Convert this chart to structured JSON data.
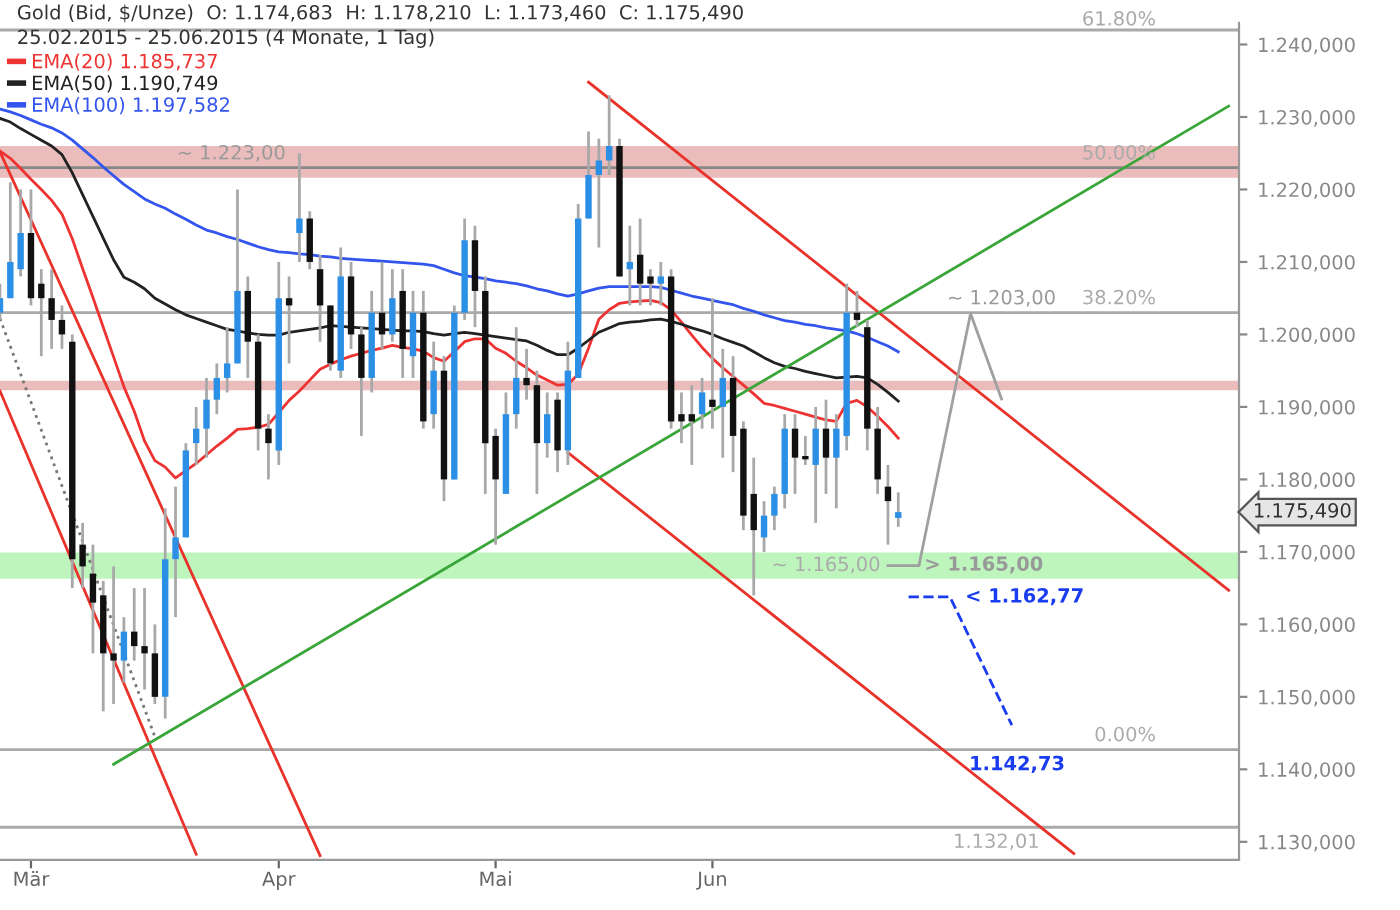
{
  "chart_data": {
    "type": "candlestick",
    "title": "Gold (Bid, $/Unze)  O: 1.174,683  H: 1.178,210  L: 1.173,460  C: 1.175,490",
    "subtitle": "25.02.2015 - 25.06.2015 (4 Monate, 1 Tag)",
    "categories": [
      null,
      null,
      null,
      "Mär",
      null,
      null,
      null,
      null,
      null,
      null,
      null,
      null,
      null,
      null,
      null,
      null,
      null,
      null,
      null,
      null,
      null,
      null,
      null,
      null,
      null,
      null,
      null,
      "Apr",
      null,
      null,
      null,
      null,
      null,
      null,
      null,
      null,
      null,
      null,
      null,
      null,
      null,
      null,
      null,
      null,
      null,
      null,
      null,
      null,
      "Mai",
      null,
      null,
      null,
      null,
      null,
      null,
      null,
      null,
      null,
      null,
      null,
      null,
      null,
      null,
      null,
      null,
      null,
      null,
      null,
      null,
      "Jun",
      null,
      null,
      null,
      null,
      null,
      null,
      null,
      null,
      null,
      null,
      null,
      null,
      null,
      null,
      null,
      null,
      null,
      null,
      null,
      null,
      null,
      null,
      null,
      null,
      null,
      null,
      null,
      null,
      null,
      null,
      null,
      null,
      null,
      null,
      null,
      null,
      null,
      null,
      null,
      null,
      null,
      null,
      null,
      null,
      null,
      null,
      null,
      null,
      null,
      null
    ],
    "ohlc": [
      [
        1203,
        1207,
        1202,
        1205
      ],
      [
        1205,
        1221,
        1205,
        1210
      ],
      [
        1209,
        1220,
        1208,
        1214
      ],
      [
        1214,
        1220,
        1204,
        1205
      ],
      [
        1207,
        1209,
        1197,
        1205
      ],
      [
        1205,
        1209,
        1198,
        1202
      ],
      [
        1202,
        1204,
        1198,
        1200
      ],
      [
        1199,
        1200,
        1165,
        1169
      ],
      [
        1171,
        1174,
        1165,
        1168
      ],
      [
        1167,
        1171,
        1156,
        1163
      ],
      [
        1164,
        1166,
        1148,
        1156
      ],
      [
        1156,
        1168,
        1149,
        1155
      ],
      [
        1155,
        1161,
        1152,
        1159
      ],
      [
        1159,
        1165,
        1155,
        1157
      ],
      [
        1157,
        1165,
        1151,
        1156
      ],
      [
        1156,
        1160,
        1149,
        1150
      ],
      [
        1150,
        1176,
        1147,
        1169
      ],
      [
        1169,
        1179,
        1161,
        1172
      ],
      [
        1172,
        1185,
        1172,
        1184
      ],
      [
        1185,
        1190,
        1182,
        1187
      ],
      [
        1187,
        1194,
        1183,
        1191
      ],
      [
        1191,
        1196,
        1189,
        1194
      ],
      [
        1194,
        1201,
        1192,
        1196
      ],
      [
        1196,
        1220,
        1196,
        1206
      ],
      [
        1206,
        1208,
        1194,
        1199
      ],
      [
        1199,
        1200,
        1184,
        1187
      ],
      [
        1187,
        1189,
        1180,
        1185
      ],
      [
        1184,
        1210,
        1182,
        1205
      ],
      [
        1205,
        1208,
        1196,
        1204
      ],
      [
        1214,
        1225,
        1210,
        1216
      ],
      [
        1216,
        1217,
        1209,
        1210
      ],
      [
        1209,
        1211,
        1199,
        1204
      ],
      [
        1204,
        1204,
        1195,
        1196
      ],
      [
        1195,
        1212,
        1194,
        1208
      ],
      [
        1208,
        1210,
        1198,
        1200
      ],
      [
        1200,
        1201,
        1186,
        1194
      ],
      [
        1194,
        1206,
        1192,
        1203
      ],
      [
        1203,
        1210,
        1198,
        1200
      ],
      [
        1200,
        1209,
        1199,
        1205
      ],
      [
        1206,
        1209,
        1194,
        1198
      ],
      [
        1197,
        1206,
        1194,
        1203
      ],
      [
        1203,
        1206,
        1187,
        1188
      ],
      [
        1189,
        1199,
        1187,
        1195
      ],
      [
        1195,
        1197,
        1177,
        1180
      ],
      [
        1180,
        1204,
        1180,
        1203
      ],
      [
        1203,
        1216,
        1202,
        1213
      ],
      [
        1213,
        1215,
        1201,
        1206
      ],
      [
        1206,
        1208,
        1178,
        1185
      ],
      [
        1186,
        1187,
        1171,
        1180
      ],
      [
        1178,
        1192,
        1178,
        1189
      ],
      [
        1189,
        1201,
        1187,
        1194
      ],
      [
        1194,
        1198,
        1191,
        1193
      ],
      [
        1193,
        1195,
        1178,
        1185
      ],
      [
        1185,
        1192,
        1183,
        1189
      ],
      [
        1191,
        1192,
        1181,
        1184
      ],
      [
        1184,
        1199,
        1182,
        1195
      ],
      [
        1194,
        1218,
        1194,
        1216
      ],
      [
        1216,
        1228,
        1216,
        1222
      ],
      [
        1222,
        1227,
        1212,
        1224
      ],
      [
        1224,
        1233,
        1222,
        1226
      ],
      [
        1226,
        1227,
        1208,
        1208
      ],
      [
        1209,
        1215,
        1204,
        1210
      ],
      [
        1211,
        1216,
        1204,
        1207
      ],
      [
        1208,
        1209,
        1204,
        1207
      ],
      [
        1207,
        1210,
        1204,
        1208
      ],
      [
        1208,
        1209,
        1187,
        1188
      ],
      [
        1189,
        1192,
        1185,
        1188
      ],
      [
        1189,
        1193,
        1182,
        1188
      ],
      [
        1189,
        1194,
        1187,
        1192
      ],
      [
        1191,
        1205,
        1187,
        1190
      ],
      [
        1190,
        1198,
        1183,
        1194
      ],
      [
        1194,
        1197,
        1181,
        1186
      ],
      [
        1187,
        1188,
        1173,
        1175
      ],
      [
        1178,
        1183,
        1164,
        1173
      ],
      [
        1172,
        1177,
        1170,
        1175
      ],
      [
        1175,
        1179,
        1173,
        1178
      ],
      [
        1178,
        1189,
        1176,
        1187
      ],
      [
        1187,
        1189,
        1178,
        1183
      ],
      [
        1183,
        1186,
        1182,
        1183
      ],
      [
        1182,
        1190,
        1174,
        1187
      ],
      [
        1187,
        1191,
        1178,
        1183
      ],
      [
        1183,
        1189,
        1176,
        1187
      ],
      [
        1186,
        1207,
        1184,
        1203
      ],
      [
        1203,
        1206,
        1201,
        1202
      ],
      [
        1201,
        1202,
        1184,
        1187
      ],
      [
        1187,
        1190,
        1178,
        1180
      ],
      [
        1179,
        1182,
        1171,
        1177
      ],
      [
        1174.683,
        1178.21,
        1173.46,
        1175.49
      ],
      null,
      null,
      null,
      null,
      null,
      null,
      null,
      null,
      null,
      null,
      null,
      null,
      null,
      null,
      null,
      null,
      null,
      null,
      null,
      null,
      null,
      null,
      null,
      null,
      null,
      null,
      null,
      null,
      null,
      null,
      null,
      null
    ],
    "colors": [
      "#2b8fe6",
      "#2b8fe6",
      "#2b8fe6",
      "#111111",
      "#111111",
      "#111111",
      "#111111",
      "#111111",
      "#111111",
      "#111111",
      "#111111",
      "#111111",
      "#2b8fe6",
      "#111111",
      "#111111",
      "#111111",
      "#2b8fe6",
      "#2b8fe6",
      "#2b8fe6",
      "#2b8fe6",
      "#2b8fe6",
      "#2b8fe6",
      "#2b8fe6",
      "#2b8fe6",
      "#111111",
      "#111111",
      "#111111",
      "#2b8fe6",
      "#111111",
      "#2b8fe6",
      "#111111",
      "#111111",
      "#111111",
      "#2b8fe6",
      "#111111",
      "#111111",
      "#2b8fe6",
      "#111111",
      "#2b8fe6",
      "#111111",
      "#2b8fe6",
      "#111111",
      "#2b8fe6",
      "#111111",
      "#2b8fe6",
      "#2b8fe6",
      "#111111",
      "#111111",
      "#111111",
      "#2b8fe6",
      "#2b8fe6",
      "#111111",
      "#111111",
      "#2b8fe6",
      "#111111",
      "#2b8fe6",
      "#2b8fe6",
      "#2b8fe6",
      "#2b8fe6",
      "#2b8fe6",
      "#111111",
      "#2b8fe6",
      "#111111",
      "#111111",
      "#2b8fe6",
      "#111111",
      "#111111",
      "#111111",
      "#2b8fe6",
      "#111111",
      "#2b8fe6",
      "#111111",
      "#111111",
      "#111111",
      "#2b8fe6",
      "#2b8fe6",
      "#2b8fe6",
      "#111111",
      "#111111",
      "#2b8fe6",
      "#111111",
      "#2b8fe6",
      "#2b8fe6",
      "#111111",
      "#111111",
      "#111111",
      "#111111",
      "#2b8fe6",
      null,
      null,
      null,
      null,
      null,
      null,
      null,
      null,
      null,
      null,
      null,
      null,
      null,
      null,
      null,
      null,
      null,
      null,
      null,
      null,
      null,
      null,
      null,
      null,
      null,
      null,
      null,
      null,
      null,
      null,
      null,
      null
    ],
    "series": [
      {
        "type": "line",
        "name": "EMA(20) 1.185,737",
        "color": "#ee3333",
        "values": [
          1225.3,
          1224.3,
          1222.9,
          1221.4,
          1220.0,
          1218.5,
          1216.6,
          1213.2,
          1209.1,
          1205.1,
          1201.0,
          1196.9,
          1192.8,
          1189.4,
          1185.3,
          1182.6,
          1181.7,
          1180.2,
          1181.2,
          1182.2,
          1183.4,
          1184.6,
          1185.7,
          1186.9,
          1187.0,
          1187.2,
          1187.6,
          1189.2,
          1190.9,
          1192.2,
          1193.7,
          1195.2,
          1195.9,
          1196.5,
          1197.0,
          1197.4,
          1197.8,
          1198.1,
          1198.5,
          1198.2,
          1198.0,
          1197.7,
          1196.8,
          1196.3,
          1197.6,
          1199.0,
          1199.4,
          1199.4,
          1198.1,
          1197.4,
          1196.3,
          1195.4,
          1194.4,
          1193.7,
          1193.0,
          1193.1,
          1194.5,
          1198.1,
          1202.1,
          1203.4,
          1204.3,
          1204.5,
          1204.6,
          1204.7,
          1204.4,
          1203.4,
          1201.7,
          1199.9,
          1198.2,
          1196.7,
          1195.4,
          1194.2,
          1193.0,
          1191.8,
          1190.5,
          1190.2,
          1189.8,
          1189.4,
          1189.0,
          1188.6,
          1188.2,
          1188.0,
          1190.5,
          1190.9,
          1190.0,
          1188.7,
          1187.3,
          1185.7,
          null,
          null,
          null,
          null,
          null,
          null,
          null,
          null,
          null,
          null,
          null,
          null,
          null,
          null,
          null,
          null,
          null,
          null,
          null,
          null,
          null,
          null,
          null,
          null,
          null,
          null,
          null,
          null,
          null,
          null,
          null,
          null
        ]
      },
      {
        "type": "line",
        "name": "EMA(50) 1.190,749",
        "color": "#222222",
        "values": [
          1229.8,
          1229.3,
          1228.4,
          1227.6,
          1226.8,
          1226.0,
          1224.8,
          1222.3,
          1219.3,
          1216.3,
          1213.3,
          1210.3,
          1207.9,
          1207.2,
          1206.3,
          1205.0,
          1204.2,
          1203.4,
          1202.7,
          1202.2,
          1201.7,
          1201.2,
          1200.7,
          1200.5,
          1200.2,
          1200.0,
          1199.9,
          1199.9,
          1200.3,
          1200.5,
          1200.7,
          1200.9,
          1201.2,
          1201.1,
          1201.0,
          1200.9,
          1200.8,
          1200.7,
          1200.6,
          1200.5,
          1200.5,
          1200.4,
          1200.1,
          1199.9,
          1200.1,
          1200.3,
          1200.1,
          1199.9,
          1199.7,
          1199.5,
          1199.3,
          1199.1,
          1198.5,
          1197.8,
          1197.2,
          1197.2,
          1198.1,
          1199.2,
          1200.3,
          1200.9,
          1201.5,
          1201.7,
          1201.8,
          1202.0,
          1202.1,
          1201.8,
          1201.4,
          1200.9,
          1200.5,
          1200.0,
          1199.4,
          1198.9,
          1198.4,
          1197.6,
          1196.8,
          1196.1,
          1195.6,
          1195.3,
          1194.9,
          1194.6,
          1194.3,
          1194.0,
          1194.1,
          1194.2,
          1194.0,
          1193.1,
          1192.0,
          1190.8,
          null,
          null,
          null,
          null,
          null,
          null,
          null,
          null,
          null,
          null,
          null,
          null,
          null,
          null,
          null,
          null,
          null,
          null,
          null,
          null,
          null,
          null,
          null,
          null,
          null,
          null,
          null,
          null,
          null,
          null,
          null,
          null
        ]
      },
      {
        "type": "line",
        "name": "EMA(100) 1.197,582",
        "color": "#3355ee",
        "values": [
          1231.1,
          1230.7,
          1230.2,
          1229.6,
          1229.0,
          1228.5,
          1227.8,
          1226.8,
          1225.6,
          1224.4,
          1223.1,
          1221.9,
          1220.7,
          1219.7,
          1218.7,
          1218.0,
          1217.4,
          1216.6,
          1215.9,
          1215.1,
          1214.4,
          1214.0,
          1213.5,
          1213.1,
          1212.6,
          1212.1,
          1211.7,
          1211.4,
          1211.3,
          1211.1,
          1211.0,
          1210.8,
          1210.7,
          1210.5,
          1210.4,
          1210.3,
          1210.2,
          1210.1,
          1210.0,
          1209.9,
          1209.8,
          1209.7,
          1209.5,
          1209.0,
          1208.5,
          1208.1,
          1207.9,
          1207.7,
          1207.4,
          1207.2,
          1207.0,
          1206.7,
          1206.3,
          1206.0,
          1205.6,
          1205.3,
          1205.6,
          1206.0,
          1206.4,
          1206.6,
          1206.6,
          1206.6,
          1206.6,
          1206.6,
          1206.5,
          1206.1,
          1205.7,
          1205.3,
          1205.0,
          1204.7,
          1204.4,
          1204.1,
          1203.6,
          1203.2,
          1202.7,
          1202.3,
          1201.9,
          1201.7,
          1201.4,
          1201.2,
          1200.9,
          1200.7,
          1200.5,
          1200.1,
          1199.6,
          1199.0,
          1198.4,
          1197.6,
          null,
          null,
          null,
          null,
          null,
          null,
          null,
          null,
          null,
          null,
          null,
          null,
          null,
          null,
          null,
          null,
          null,
          null,
          null,
          null,
          null,
          null,
          null,
          null,
          null,
          null,
          null,
          null,
          null,
          null,
          null,
          null
        ]
      },
      {
        "type": "line",
        "color": "#e8322a",
        "values": [
          1225.2,
          null,
          null,
          null,
          null,
          null,
          null,
          null,
          null,
          null,
          null,
          null,
          null,
          null,
          null,
          null,
          null,
          null,
          null,
          null,
          null,
          null,
          null,
          null,
          null,
          null,
          null,
          null,
          null,
          null,
          null,
          1128.1,
          null,
          null,
          null,
          null,
          null,
          null,
          null,
          null,
          null,
          null,
          null,
          null,
          null,
          null,
          null,
          null,
          null,
          null,
          null,
          null,
          null,
          null,
          null,
          null,
          null,
          null,
          null,
          null,
          null,
          null,
          null,
          null,
          null,
          null,
          null,
          null,
          null,
          null,
          null,
          null,
          null,
          null,
          null,
          null,
          null,
          null,
          null,
          null,
          null,
          null,
          null,
          null,
          null,
          null,
          null,
          null,
          null,
          null,
          null,
          null,
          null,
          null,
          null,
          null,
          null,
          null,
          null,
          null,
          null,
          null,
          null,
          null,
          null,
          null,
          null,
          null,
          null,
          null,
          null,
          null,
          null,
          null,
          null,
          null,
          null,
          null,
          null,
          null
        ]
      },
      {
        "type": "line",
        "color": "#e8322a",
        "values": [
          1192.2,
          null,
          null,
          null,
          null,
          null,
          null,
          null,
          null,
          null,
          null,
          null,
          null,
          null,
          null,
          null,
          null,
          null,
          null,
          1128.3,
          null,
          null,
          null,
          null,
          null,
          null,
          null,
          null,
          null,
          null,
          null,
          null,
          null,
          null,
          null,
          null,
          null,
          null,
          null,
          null,
          null,
          null,
          null,
          null,
          null,
          null,
          null,
          null,
          null,
          null,
          null,
          null,
          null,
          null,
          null,
          null,
          null,
          null,
          null,
          null,
          null,
          null,
          null,
          null,
          null,
          null,
          null,
          null,
          null,
          null,
          null,
          null,
          null,
          null,
          null,
          null,
          null,
          null,
          null,
          null,
          null,
          null,
          null,
          null,
          null,
          null,
          null,
          null,
          null,
          null,
          null,
          null,
          null,
          null,
          null,
          null,
          null,
          null,
          null,
          null,
          null,
          null,
          null,
          null,
          null,
          null,
          null,
          null,
          null,
          null,
          null,
          null,
          null,
          null,
          null,
          null,
          null,
          null,
          null,
          null
        ]
      },
      {
        "type": "line",
        "color": "#e8322a",
        "values": [
          null,
          null,
          null,
          null,
          null,
          null,
          null,
          null,
          null,
          null,
          null,
          null,
          null,
          null,
          null,
          null,
          null,
          null,
          null,
          null,
          null,
          null,
          null,
          null,
          null,
          null,
          null,
          null,
          null,
          null,
          null,
          null,
          null,
          null,
          null,
          null,
          null,
          null,
          null,
          null,
          null,
          null,
          null,
          null,
          null,
          null,
          null,
          null,
          null,
          null,
          null,
          null,
          null,
          null,
          null,
          null,
          null,
          1234.8,
          null,
          null,
          null,
          null,
          null,
          null,
          null,
          null,
          null,
          null,
          null,
          null,
          null,
          null,
          null,
          null,
          null,
          null,
          null,
          null,
          null,
          null,
          null,
          null,
          null,
          null,
          null,
          null,
          null,
          null,
          null,
          null,
          null,
          null,
          null,
          null,
          null,
          null,
          null,
          null,
          null,
          null,
          null,
          null,
          null,
          null,
          null,
          null,
          null,
          null,
          null,
          null,
          null,
          null,
          null,
          null,
          null,
          null,
          null,
          null,
          null,
          1164.7
        ]
      },
      {
        "type": "line",
        "color": "#e8322a",
        "values": [
          null,
          null,
          null,
          null,
          null,
          null,
          null,
          null,
          null,
          null,
          null,
          null,
          null,
          null,
          null,
          null,
          null,
          null,
          null,
          null,
          null,
          null,
          null,
          null,
          null,
          null,
          null,
          null,
          null,
          null,
          null,
          null,
          null,
          null,
          null,
          null,
          null,
          null,
          null,
          null,
          null,
          null,
          null,
          null,
          null,
          null,
          null,
          null,
          null,
          null,
          null,
          null,
          null,
          null,
          null,
          1183.7,
          null,
          null,
          null,
          null,
          null,
          null,
          null,
          null,
          null,
          null,
          null,
          null,
          null,
          null,
          null,
          null,
          null,
          null,
          null,
          null,
          null,
          null,
          null,
          null,
          null,
          null,
          null,
          null,
          null,
          null,
          null,
          null,
          null,
          null,
          null,
          null,
          null,
          null,
          null,
          null,
          null,
          null,
          null,
          null,
          null,
          null,
          null,
          null,
          1128.4,
          null,
          null,
          null,
          null,
          null,
          null,
          null,
          null,
          null,
          null,
          null,
          null,
          null,
          null,
          null
        ]
      },
      {
        "type": "line",
        "color": "#3aa63a",
        "values": [
          null,
          null,
          null,
          null,
          null,
          null,
          null,
          null,
          null,
          null,
          null,
          1140.7,
          null,
          null,
          null,
          null,
          null,
          null,
          null,
          null,
          null,
          null,
          null,
          null,
          null,
          null,
          null,
          null,
          null,
          null,
          null,
          null,
          null,
          null,
          null,
          null,
          null,
          null,
          null,
          null,
          null,
          null,
          null,
          null,
          null,
          null,
          null,
          null,
          null,
          null,
          null,
          null,
          null,
          null,
          null,
          null,
          null,
          null,
          null,
          null,
          null,
          null,
          null,
          null,
          null,
          null,
          null,
          null,
          null,
          null,
          null,
          null,
          null,
          null,
          null,
          null,
          null,
          null,
          null,
          null,
          null,
          null,
          null,
          null,
          null,
          null,
          null,
          null,
          null,
          null,
          null,
          null,
          null,
          null,
          null,
          null,
          null,
          null,
          null,
          null,
          null,
          null,
          null,
          null,
          null,
          null,
          null,
          null,
          null,
          null,
          null,
          null,
          null,
          null,
          null,
          null,
          null,
          null,
          null,
          1231.5
        ]
      },
      {
        "type": "line",
        "color": "#777777",
        "line_style": "dotted",
        "values": [
          1202.2,
          null,
          null,
          null,
          null,
          null,
          null,
          null,
          null,
          null,
          null,
          null,
          null,
          null,
          null,
          1144.5,
          null,
          null,
          null,
          null,
          null,
          null,
          null,
          null,
          null,
          null,
          null,
          null,
          null,
          null,
          null,
          null,
          null,
          null,
          null,
          null,
          null,
          null,
          null,
          null,
          null,
          null,
          null,
          null,
          null,
          null,
          null,
          null,
          null,
          null,
          null,
          null,
          null,
          null,
          null,
          null,
          null,
          null,
          null,
          null,
          null,
          null,
          null,
          null,
          null,
          null,
          null,
          null,
          null,
          null,
          null,
          null,
          null,
          null,
          null,
          null,
          null,
          null,
          null,
          null,
          null,
          null,
          null,
          null,
          null,
          null,
          null,
          null,
          null,
          null,
          null,
          null,
          null,
          null,
          null,
          null,
          null,
          null,
          null,
          null,
          null,
          null,
          null,
          null,
          null,
          null,
          null,
          null,
          null,
          null,
          null,
          null,
          null,
          null,
          null,
          null,
          null,
          null,
          null,
          null
        ]
      },
      {
        "type": "line",
        "color": "#a0a0a0",
        "values": [
          null,
          null,
          null,
          null,
          null,
          null,
          null,
          null,
          null,
          null,
          null,
          null,
          null,
          null,
          null,
          null,
          null,
          null,
          null,
          null,
          null,
          null,
          null,
          null,
          null,
          null,
          null,
          null,
          null,
          null,
          null,
          null,
          null,
          null,
          null,
          null,
          null,
          null,
          null,
          null,
          null,
          null,
          null,
          null,
          null,
          null,
          null,
          null,
          null,
          null,
          null,
          null,
          null,
          null,
          null,
          null,
          null,
          null,
          null,
          null,
          null,
          null,
          null,
          null,
          null,
          null,
          null,
          null,
          null,
          null,
          null,
          null,
          null,
          null,
          null,
          null,
          null,
          null,
          null,
          null,
          null,
          null,
          null,
          null,
          null,
          null,
          1168.1,
          null,
          null,
          1168.1,
          null,
          null,
          null,
          null,
          1202.9,
          null,
          null,
          1191.1,
          null,
          null,
          null,
          null,
          null,
          null,
          null,
          null,
          null,
          null,
          null,
          null,
          null,
          null,
          null,
          null,
          null,
          null,
          null,
          null,
          null,
          null
        ]
      },
      {
        "type": "line",
        "color": "#1a3cf0",
        "line_style": "dashed",
        "values": [
          null,
          null,
          null,
          null,
          null,
          null,
          null,
          null,
          null,
          null,
          null,
          null,
          null,
          null,
          null,
          null,
          null,
          null,
          null,
          null,
          null,
          null,
          null,
          null,
          null,
          null,
          null,
          null,
          null,
          null,
          null,
          null,
          null,
          null,
          null,
          null,
          null,
          null,
          null,
          null,
          null,
          null,
          null,
          null,
          null,
          null,
          null,
          null,
          null,
          null,
          null,
          null,
          null,
          null,
          null,
          null,
          null,
          null,
          null,
          null,
          null,
          null,
          null,
          null,
          null,
          null,
          null,
          null,
          null,
          null,
          null,
          null,
          null,
          null,
          null,
          null,
          null,
          null,
          null,
          null,
          null,
          null,
          null,
          null,
          null,
          null,
          null,
          null,
          1163.8,
          null,
          null,
          null,
          1163.8,
          null,
          null,
          null,
          null,
          null,
          1146.1,
          null,
          null,
          null,
          null,
          null,
          null,
          null,
          null,
          null,
          null,
          null,
          null,
          null,
          null,
          null,
          null,
          null,
          null,
          null,
          null,
          null
        ]
      }
    ],
    "ylim": [
      1127.5,
      1243
    ],
    "yticks": [
      {
        "value": 1130,
        "label": "1.130,000"
      },
      {
        "value": 1140,
        "label": "1.140,000"
      },
      {
        "value": 1150,
        "label": "1.150,000"
      },
      {
        "value": 1160,
        "label": "1.160,000"
      },
      {
        "value": 1170,
        "label": "1.170,000"
      },
      {
        "value": 1180,
        "label": "1.180,000"
      },
      {
        "value": 1190,
        "label": "1.190,000"
      },
      {
        "value": 1200,
        "label": "1.200,000"
      },
      {
        "value": 1210,
        "label": "1.210,000"
      },
      {
        "value": 1220,
        "label": "1.220,000"
      },
      {
        "value": 1230,
        "label": "1.230,000"
      },
      {
        "value": 1240,
        "label": "1.240,000"
      }
    ],
    "bands": [
      {
        "axis": "y",
        "from": 1221.6,
        "to": 1226,
        "color": "#ebbcbc"
      },
      {
        "axis": "y",
        "from": 1192.3,
        "to": 1193.6,
        "color": "#ebbcbc"
      },
      {
        "axis": "y",
        "from": 1166.3,
        "to": 1169.9,
        "color": "#bdf5bd",
        "label": "~ 1.165,00"
      }
    ],
    "ref_lines": [
      {
        "axis": "y",
        "value": 1242,
        "color": "#aaaaaa"
      },
      {
        "axis": "y",
        "value": 1223,
        "color": "#888888"
      },
      {
        "axis": "y",
        "value": 1203,
        "color": "#aaaaaa"
      },
      {
        "axis": "y",
        "value": 1142.73,
        "color": "#aaaaaa"
      },
      {
        "axis": "y",
        "value": 1132.01,
        "label": "1.132,01",
        "color": "#aaaaaa"
      }
    ],
    "annotations": [
      {
        "text": "~ 1.223,00",
        "y": 1223
      },
      {
        "text": "~ 1.203,00",
        "y": 1203
      },
      {
        "text": "1.142,73",
        "y": 1142.73
      },
      "> 1.165,00",
      "< 1.162,77",
      "1.175,490",
      "61.80%",
      "50.00%",
      "38.20%",
      "0.00%"
    ],
    "legend": "top left"
  }
}
